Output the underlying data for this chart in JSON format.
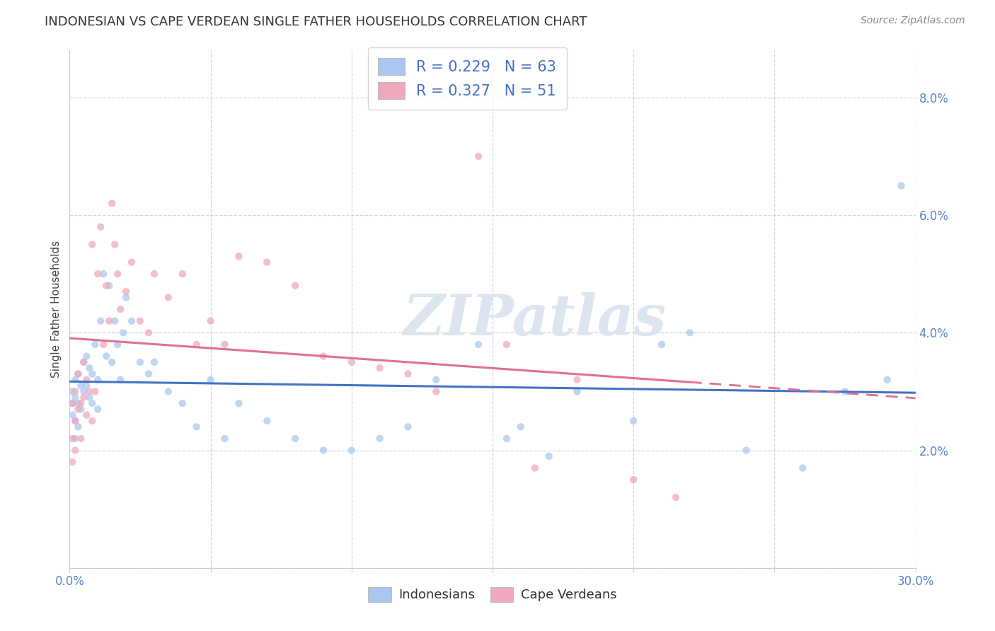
{
  "title": "INDONESIAN VS CAPE VERDEAN SINGLE FATHER HOUSEHOLDS CORRELATION CHART",
  "source": "Source: ZipAtlas.com",
  "ylabel": "Single Father Households",
  "xlim": [
    0.0,
    0.3
  ],
  "ylim": [
    0.0,
    0.088
  ],
  "xticks": [
    0.0,
    0.05,
    0.1,
    0.15,
    0.2,
    0.25,
    0.3
  ],
  "yticks": [
    0.0,
    0.02,
    0.04,
    0.06,
    0.08
  ],
  "yticklabels": [
    "",
    "2.0%",
    "4.0%",
    "6.0%",
    "8.0%"
  ],
  "indonesian_color": "#a8c8f0",
  "capeverdean_color": "#f0a8bc",
  "indonesian_line_color": "#4472c4",
  "capeverdean_line_color": "#e07090",
  "indonesian_R": 0.229,
  "indonesian_N": 63,
  "capeverdean_R": 0.327,
  "capeverdean_N": 51,
  "watermark": "ZIPatlas",
  "legend_label_1": "Indonesians",
  "legend_label_2": "Cape Verdeans",
  "indo_x": [
    0.001,
    0.001,
    0.001,
    0.002,
    0.002,
    0.002,
    0.002,
    0.003,
    0.003,
    0.003,
    0.004,
    0.004,
    0.005,
    0.005,
    0.006,
    0.006,
    0.007,
    0.007,
    0.008,
    0.008,
    0.009,
    0.01,
    0.01,
    0.011,
    0.012,
    0.013,
    0.014,
    0.015,
    0.016,
    0.017,
    0.018,
    0.019,
    0.02,
    0.022,
    0.025,
    0.028,
    0.03,
    0.035,
    0.04,
    0.045,
    0.05,
    0.055,
    0.06,
    0.07,
    0.08,
    0.09,
    0.1,
    0.11,
    0.12,
    0.13,
    0.145,
    0.155,
    0.16,
    0.17,
    0.18,
    0.2,
    0.21,
    0.22,
    0.24,
    0.26,
    0.275,
    0.29,
    0.295
  ],
  "indo_y": [
    0.03,
    0.028,
    0.026,
    0.032,
    0.029,
    0.025,
    0.022,
    0.033,
    0.028,
    0.024,
    0.031,
    0.027,
    0.035,
    0.03,
    0.036,
    0.031,
    0.034,
    0.029,
    0.033,
    0.028,
    0.038,
    0.032,
    0.027,
    0.042,
    0.05,
    0.036,
    0.048,
    0.035,
    0.042,
    0.038,
    0.032,
    0.04,
    0.046,
    0.042,
    0.035,
    0.033,
    0.035,
    0.03,
    0.028,
    0.024,
    0.032,
    0.022,
    0.028,
    0.025,
    0.022,
    0.02,
    0.02,
    0.022,
    0.024,
    0.032,
    0.038,
    0.022,
    0.024,
    0.019,
    0.03,
    0.025,
    0.038,
    0.04,
    0.02,
    0.017,
    0.03,
    0.032,
    0.065
  ],
  "cape_x": [
    0.001,
    0.001,
    0.001,
    0.002,
    0.002,
    0.002,
    0.003,
    0.003,
    0.004,
    0.004,
    0.005,
    0.005,
    0.006,
    0.006,
    0.007,
    0.008,
    0.008,
    0.009,
    0.01,
    0.011,
    0.012,
    0.013,
    0.014,
    0.015,
    0.016,
    0.017,
    0.018,
    0.02,
    0.022,
    0.025,
    0.028,
    0.03,
    0.035,
    0.04,
    0.045,
    0.05,
    0.055,
    0.06,
    0.07,
    0.08,
    0.09,
    0.1,
    0.11,
    0.12,
    0.13,
    0.145,
    0.155,
    0.165,
    0.18,
    0.2,
    0.215
  ],
  "cape_y": [
    0.028,
    0.022,
    0.018,
    0.03,
    0.025,
    0.02,
    0.033,
    0.027,
    0.028,
    0.022,
    0.035,
    0.029,
    0.032,
    0.026,
    0.03,
    0.055,
    0.025,
    0.03,
    0.05,
    0.058,
    0.038,
    0.048,
    0.042,
    0.062,
    0.055,
    0.05,
    0.044,
    0.047,
    0.052,
    0.042,
    0.04,
    0.05,
    0.046,
    0.05,
    0.038,
    0.042,
    0.038,
    0.053,
    0.052,
    0.048,
    0.036,
    0.035,
    0.034,
    0.033,
    0.03,
    0.07,
    0.038,
    0.017,
    0.032,
    0.015,
    0.012
  ],
  "tick_color": "#5585c8",
  "grid_color": "#c8d8e8",
  "title_fontsize": 13,
  "source_fontsize": 10,
  "marker_size": 55,
  "marker_alpha": 0.75
}
